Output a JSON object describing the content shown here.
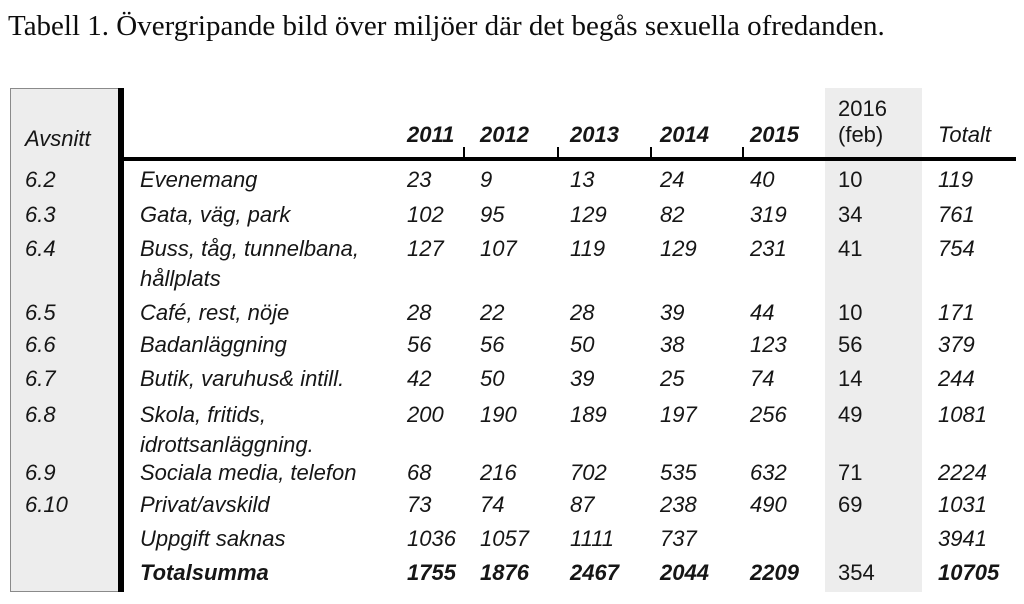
{
  "title": "Tabell 1. Övergripande bild över miljöer där det begås sexuella ofredanden.",
  "colors": {
    "column_shading": "#ededed",
    "divider_bar": "#000000",
    "text": "#161616"
  },
  "table": {
    "header": {
      "section": "Avsnitt",
      "years": [
        "2011",
        "2012",
        "2013",
        "2014",
        "2015"
      ],
      "year2016_line1": "2016",
      "year2016_line2": "(feb)",
      "total": "Totalt"
    },
    "rows": [
      {
        "section": "6.2",
        "label": "Evenemang",
        "values": [
          "23",
          "9",
          "13",
          "24",
          "40"
        ],
        "feb2016": "10",
        "total": "119"
      },
      {
        "section": "6.3",
        "label": "Gata, väg, park",
        "values": [
          "102",
          "95",
          "129",
          "82",
          "319"
        ],
        "feb2016": "34",
        "total": "761"
      },
      {
        "section": "6.4",
        "label": "Buss, tåg, tunnelbana, hållplats",
        "values": [
          "127",
          "107",
          "119",
          "129",
          "231"
        ],
        "feb2016": "41",
        "total": "754"
      },
      {
        "section": "6.5",
        "label": "Café, rest, nöje",
        "values": [
          "28",
          "22",
          "28",
          "39",
          "44"
        ],
        "feb2016": "10",
        "total": "171"
      },
      {
        "section": "6.6",
        "label": "Badanläggning",
        "values": [
          "56",
          "56",
          "50",
          "38",
          "123"
        ],
        "feb2016": "56",
        "total": "379"
      },
      {
        "section": "6.7",
        "label": "Butik, varuhus& intill.",
        "values": [
          "42",
          "50",
          "39",
          "25",
          "74"
        ],
        "feb2016": "14",
        "total": "244"
      },
      {
        "section": "6.8",
        "label": "Skola, fritids, idrottsanläggning.",
        "values": [
          "200",
          "190",
          "189",
          "197",
          "256"
        ],
        "feb2016": "49",
        "total": "1081"
      },
      {
        "section": "6.9",
        "label": "Sociala media, telefon",
        "values": [
          "68",
          "216",
          "702",
          "535",
          "632"
        ],
        "feb2016": "71",
        "total": "2224"
      },
      {
        "section": "6.10",
        "label": "Privat/avskild",
        "values": [
          "73",
          "74",
          "87",
          "238",
          "490"
        ],
        "feb2016": "69",
        "total": "1031"
      },
      {
        "section": "",
        "label": "Uppgift saknas",
        "values": [
          "1036",
          "1057",
          "1111",
          "737",
          ""
        ],
        "feb2016": "",
        "total": "3941"
      },
      {
        "section": "",
        "label": "Totalsumma",
        "values": [
          "1755",
          "1876",
          "2467",
          "2044",
          "2209"
        ],
        "feb2016": "354",
        "total": "10705"
      }
    ]
  }
}
